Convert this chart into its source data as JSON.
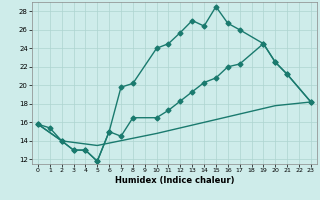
{
  "xlabel": "Humidex (Indice chaleur)",
  "xlim": [
    -0.5,
    23.5
  ],
  "ylim": [
    11.5,
    29.0
  ],
  "xticks": [
    0,
    1,
    2,
    3,
    4,
    5,
    6,
    7,
    8,
    9,
    10,
    11,
    12,
    13,
    14,
    15,
    16,
    17,
    18,
    19,
    20,
    21,
    22,
    23
  ],
  "yticks": [
    12,
    14,
    16,
    18,
    20,
    22,
    24,
    26,
    28
  ],
  "bg_color": "#ceecea",
  "grid_color": "#aed4d0",
  "line_color": "#1a7a6e",
  "line1_x": [
    0,
    1,
    2,
    3,
    4,
    5,
    6,
    7,
    8,
    10,
    11,
    12,
    13,
    14,
    15,
    16,
    17,
    19,
    20,
    21,
    23
  ],
  "line1_y": [
    15.8,
    15.4,
    14.0,
    13.0,
    13.0,
    11.8,
    15.0,
    19.8,
    20.2,
    24.0,
    24.5,
    25.7,
    27.0,
    26.4,
    28.5,
    26.7,
    26.0,
    24.5,
    22.5,
    21.2,
    18.2
  ],
  "line2_x": [
    0,
    2,
    3,
    4,
    5,
    6,
    7,
    8,
    10,
    11,
    12,
    13,
    14,
    15,
    16,
    17,
    19,
    20,
    21,
    23
  ],
  "line2_y": [
    15.8,
    14.0,
    13.0,
    13.0,
    11.8,
    15.0,
    14.5,
    16.5,
    16.5,
    17.3,
    18.3,
    19.3,
    20.3,
    20.8,
    22.0,
    22.3,
    24.5,
    22.5,
    21.2,
    18.2
  ],
  "line3_x": [
    0,
    2,
    5,
    10,
    15,
    20,
    23
  ],
  "line3_y": [
    15.8,
    14.0,
    13.5,
    14.8,
    16.3,
    17.8,
    18.2
  ],
  "linewidth": 1.0,
  "marker": "D",
  "marker_size": 2.5
}
